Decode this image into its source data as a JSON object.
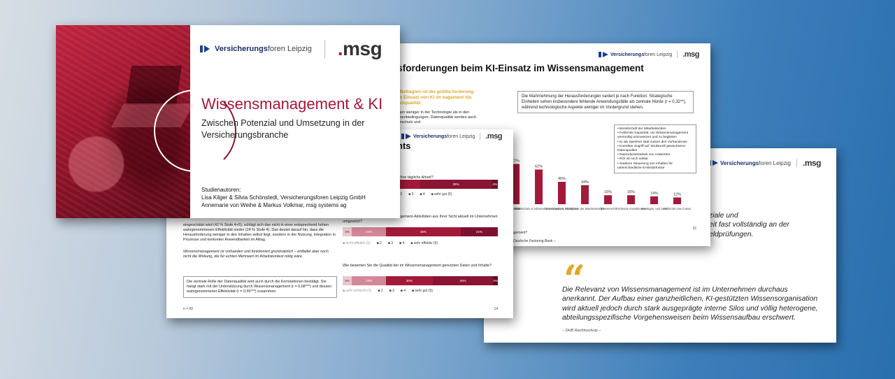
{
  "brand": {
    "vf_bold": "Versicherungs",
    "vf_light": "foren Leipzig",
    "msg_dot": ".",
    "msg_text": "msg",
    "accent": "#a3193a",
    "orange": "#e0a72a"
  },
  "cover": {
    "title": "Wissensmanagement & KI",
    "subtitle": "Zwischen Potenzial und Umsetzung in der Versicherungsbranche",
    "authors_label": "Studienautoren:",
    "authors_line1": "Lisa Kilger & Silvia Schönstedt, Versicherungsforen Leipzig GmbH",
    "authors_line2": "Annemarie von Weihe & Markus Volkmar, msg systems ag"
  },
  "chart_page": {
    "title": "usforderungen beim KI-Einsatz im Wissensmanagement",
    "orange_text": "der Befragten ist die größte forderung beim Einsatz von KI im nagement die Datenqualität.",
    "small_text": "e liegen weniger in der Technologie als in den Rahmenbedingungen. Datenqualität werden auch Datenschutz und",
    "box_text": "Die Wahrnehmung der Herausforderungen variiert je nach Funktion: Strategische Einheiten sehen insbesondere fehlende Anwendungsfälle als zentrale Hürde (r = 0,32**), während technologische Aspekte weniger im Vordergrund stehen.",
    "legend": [
      "Bereitschaft der Mitarbeitenden",
      "Fehlende Kapazität, um Wissensmanagement vernünftig umzusetzen und zu begleiten",
      "KI als Spielerei statt nutzen des Vorhandenen",
      "Korrekter Zugriff auf 'strukturell gewachsene' Datenquellen",
      "Reproduzierbarkeit von Antworten",
      "ROI ist noch unklar",
      "Saubere Steuerung von Inhalten für unterschiedliche KI-Bedürfnisse"
    ],
    "page_number": "32",
    "question": "agement?",
    "source": "– Deutsche Factoring Bank –"
  },
  "chart_data": {
    "type": "bar",
    "categories": [
      "qualität",
      "Datenschutz & Informations-sicherheit",
      "Governance & Richtlinien",
      "Akzeptanz der Mitarbeitenden",
      "Urheberrecht",
      "Fehlende Investitionen",
      "Sonstiges, und zwar",
      "Fehlende Use Cases"
    ],
    "values": [
      72,
      62,
      40,
      34,
      16,
      16,
      14,
      12
    ],
    "value_labels": [
      "72%",
      "62%",
      "40%",
      "34%",
      "16%",
      "16%",
      "14%",
      "12%"
    ],
    "color": "#a3193a"
  },
  "survey_page": {
    "title": "nts",
    "left_text1": "eingeschätzt wird (42 % Stufe 4+5), schlägt sich das nicht in einer entsprechend hohen wahrgenommenen Effektivität nieder (24 % Stufe 4). Das deutet darauf hin, dass die Herausforderung weniger in den Inhalten selbst liegt, sondern in der Nutzung, Integration in Prozesse und konkreten Anwendbarkeit im Alltag.",
    "left_text2": "Wissensmanagement ist vorhanden und funktioniert grundsätzlich – entfaltet aber noch nicht die Wirkung, die für echten Mehrwert im Arbeitskontext nötig wäre.",
    "box_text": "Die zentrale Rolle der Datenqualität wird auch durch die Korrelationen bestätigt. Sie hängt stark mit der Unterstützung durch Wissensmanagement (r = 0,68***) und dessen wahrgenommener Effektivität (r = 0,55***) zusammen.",
    "n": "n = 60",
    "page_number": "14",
    "q1_label": "en Wissensmanagement-Ansätze Ihre tägliche Arbeit?",
    "q1_values": [
      "33%",
      "39%",
      "4%"
    ],
    "q1_scale": [
      "2",
      "3",
      "4",
      "sehr gut (5)"
    ],
    "q2_label": "Wie effektiv werden Wissensmanagement-Aktivitäten aus Ihrer Sicht aktuell im Unternehmen umgesetzt?",
    "q2_values": [
      "3%",
      "24%",
      "48%",
      "24%"
    ],
    "q2_scale": [
      "nicht effektiv (1)",
      "2",
      "3",
      "4",
      "sehr effektiv (5)"
    ],
    "q3_label": "Wie bewerten Sie die Qualität der im Wissensmanagement genutzten Daten und Inhalte?",
    "q3_values": [
      "5%",
      "23%",
      "30%",
      "40%",
      "2%"
    ],
    "q3_scale": [
      "sehr schlecht (1)",
      "2",
      "3",
      "4",
      "sehr gut (5)"
    ]
  },
  "quote_page": {
    "peek_text": "ziale und\neit fast vollständig an der\neldprüfungen.",
    "quote_mark": "“",
    "quote": "Die Relevanz von Wissensmanagement ist im Unternehmen durchaus anerkannt. Der Aufbau einer ganzheitlichen, KI-gestützten Wissensorganisation wird aktuell jedoch durch stark ausgeprägte interne Silos und völlig heterogene, abteilungsspezifische Vorgehensweisen beim Wissensaufbau erschwert.",
    "source": "– DHB Rechtsschutz –"
  }
}
